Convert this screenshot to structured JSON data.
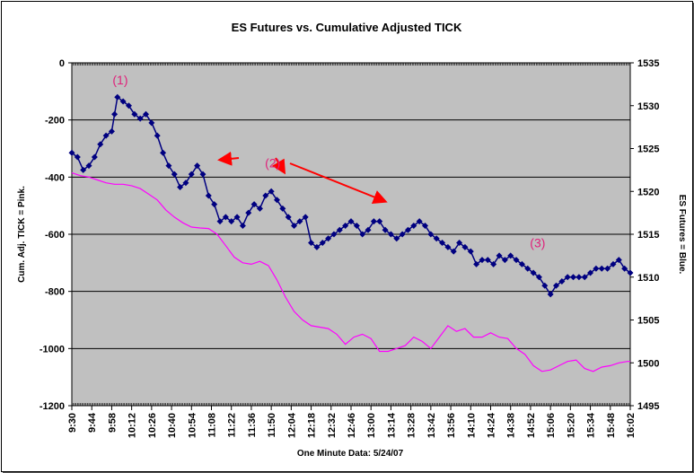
{
  "chart_data": {
    "type": "line",
    "title": "ES Futures vs. Cumulative Adjusted TICK",
    "xlabel": "One Minute Data: 5/24/07",
    "ylabel_left": "Cum. Adj. TICK = Pink.",
    "ylabel_right": "ES Futures = Blue.",
    "ylim_left": [
      -1200,
      0
    ],
    "ylim_right": [
      1495,
      1535
    ],
    "yticks_left": [
      0,
      -200,
      -400,
      -600,
      -800,
      -1000,
      -1200
    ],
    "yticks_left_labels": [
      "0",
      "-200",
      "-400",
      "-600",
      "-800",
      "-1000",
      "-1200"
    ],
    "yticks_right": [
      1535,
      1530,
      1525,
      1520,
      1515,
      1510,
      1505,
      1500,
      1495
    ],
    "yticks_right_labels": [
      "1535",
      "1530",
      "1525",
      "1520",
      "1515",
      "1510",
      "1505",
      "1500",
      "1495"
    ],
    "xticks": [
      "9:30",
      "9:44",
      "9:58",
      "10:12",
      "10:26",
      "10:40",
      "10:54",
      "11:08",
      "11:22",
      "11:36",
      "11:50",
      "12:04",
      "12:18",
      "12:32",
      "12:46",
      "13:00",
      "13:14",
      "13:28",
      "13:42",
      "13:56",
      "14:10",
      "14:24",
      "14:38",
      "14:52",
      "15:06",
      "15:20",
      "15:34",
      "15:48",
      "16:02"
    ],
    "x_range_minutes": [
      570,
      962
    ],
    "grid": "horizontal",
    "background": "#c0c0c0",
    "series": [
      {
        "name": "ES Futures",
        "axis": "right",
        "color": "#000080",
        "marker": "diamond",
        "x": [
          570,
          574,
          578,
          582,
          586,
          590,
          594,
          598,
          600,
          602,
          606,
          610,
          614,
          618,
          622,
          626,
          630,
          634,
          638,
          642,
          646,
          650,
          654,
          658,
          662,
          666,
          670,
          674,
          678,
          682,
          686,
          690,
          694,
          698,
          702,
          706,
          710,
          714,
          718,
          722,
          726,
          730,
          734,
          738,
          742,
          746,
          750,
          754,
          758,
          762,
          766,
          770,
          774,
          778,
          782,
          786,
          790,
          794,
          798,
          802,
          806,
          810,
          814,
          818,
          822,
          826,
          830,
          834,
          838,
          842,
          846,
          850,
          854,
          858,
          862,
          866,
          870,
          874,
          878,
          882,
          886,
          890,
          894,
          898,
          902,
          906,
          910,
          914,
          918,
          922,
          926,
          930,
          934,
          938,
          942,
          946,
          950,
          954,
          958,
          962
        ],
        "y": [
          1524.5,
          1524,
          1522.5,
          1523,
          1524,
          1525.5,
          1526.5,
          1527,
          1529,
          1531,
          1530.5,
          1530,
          1529,
          1528.5,
          1529,
          1528,
          1526.5,
          1524.5,
          1523,
          1522,
          1520.5,
          1521,
          1522,
          1523,
          1522,
          1519.5,
          1518.5,
          1516.5,
          1517,
          1516.5,
          1517,
          1516,
          1517.5,
          1518.5,
          1518,
          1519.5,
          1520,
          1519,
          1518,
          1517,
          1516,
          1516.5,
          1517,
          1514,
          1513.5,
          1514,
          1514.5,
          1515,
          1515.5,
          1516,
          1516.5,
          1516,
          1515,
          1515.5,
          1516.5,
          1516.5,
          1515.5,
          1515,
          1514.5,
          1515,
          1515.5,
          1516,
          1516.5,
          1516,
          1515,
          1514.5,
          1514,
          1513.5,
          1513,
          1514,
          1513.5,
          1513,
          1511.5,
          1512,
          1512,
          1511.5,
          1512.5,
          1512,
          1512.5,
          1512,
          1511.5,
          1511,
          1510.5,
          1510,
          1509,
          1508,
          1509,
          1509.5,
          1510,
          1510,
          1510,
          1510,
          1510.5,
          1511,
          1511,
          1511,
          1511.5,
          1512,
          1511,
          1510.5
        ]
      },
      {
        "name": "Cumulative Adjusted TICK",
        "axis": "left",
        "color": "#ff00ff",
        "marker": "none",
        "x": [
          570,
          576,
          582,
          588,
          594,
          600,
          606,
          612,
          618,
          624,
          630,
          636,
          642,
          648,
          654,
          660,
          666,
          672,
          678,
          684,
          690,
          696,
          702,
          708,
          714,
          720,
          726,
          732,
          738,
          744,
          750,
          756,
          762,
          768,
          774,
          780,
          786,
          792,
          798,
          804,
          810,
          816,
          822,
          828,
          834,
          840,
          846,
          852,
          858,
          864,
          870,
          876,
          882,
          888,
          894,
          900,
          906,
          912,
          918,
          924,
          930,
          936,
          942,
          948,
          954,
          960,
          962
        ],
        "y": [
          -385,
          -395,
          -400,
          -410,
          -420,
          -425,
          -425,
          -430,
          -440,
          -460,
          -480,
          -515,
          -540,
          -560,
          -575,
          -578,
          -580,
          -600,
          -640,
          -680,
          -700,
          -705,
          -695,
          -710,
          -760,
          -820,
          -870,
          -900,
          -920,
          -925,
          -930,
          -950,
          -985,
          -960,
          -950,
          -965,
          -1010,
          -1010,
          -1000,
          -990,
          -960,
          -975,
          -1000,
          -960,
          -920,
          -940,
          -930,
          -960,
          -960,
          -945,
          -960,
          -965,
          -1000,
          -1020,
          -1060,
          -1080,
          -1075,
          -1060,
          -1045,
          -1040,
          -1070,
          -1080,
          -1065,
          -1060,
          -1050,
          -1045,
          -1045
        ]
      }
    ],
    "annotations": [
      {
        "label": "(1)",
        "x": 604,
        "y_right": 1532.5
      },
      {
        "label": "(2)",
        "x": 711,
        "y_right": 1522.8
      },
      {
        "label": "(3)",
        "x": 897,
        "y_right": 1513.5
      }
    ]
  }
}
